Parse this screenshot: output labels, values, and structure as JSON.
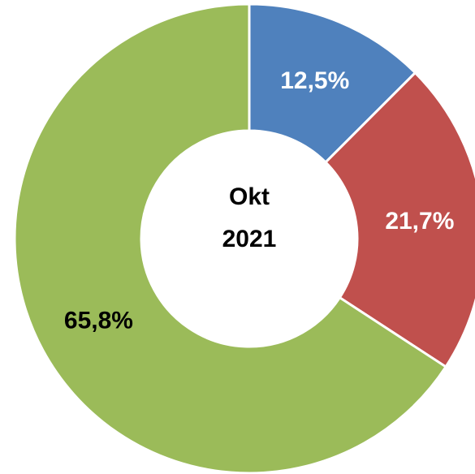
{
  "chart_data": {
    "type": "donut",
    "categories": [
      null,
      null,
      null
    ],
    "values": [
      12.5,
      21.7,
      65.8
    ],
    "value_labels": [
      "12,5%",
      "21,7%",
      "65,8%"
    ],
    "colors": [
      "#4f81bd",
      "#c0504d",
      "#9bbb59"
    ],
    "label_colors": [
      "#ffffff",
      "#ffffff",
      "#000000"
    ],
    "center_label": [
      "Okt",
      "2021"
    ]
  }
}
